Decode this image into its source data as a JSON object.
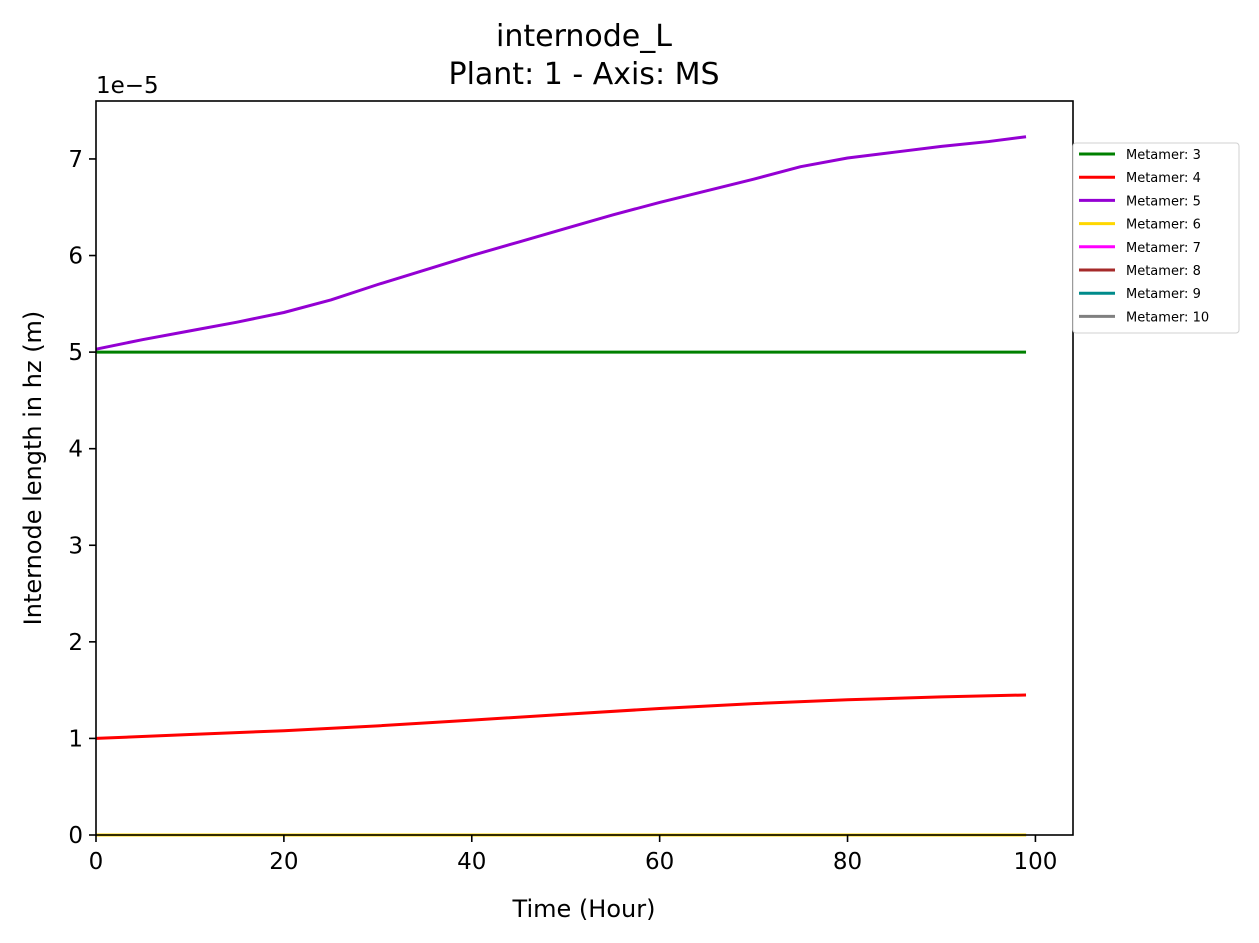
{
  "chart_data": {
    "type": "line",
    "title": "internode_L",
    "subtitle": "Plant: 1 - Axis: MS",
    "xlabel": "Time (Hour)",
    "ylabel": "Internode length in hz (m)",
    "y_offset_label": "1e−5",
    "xlim": [
      0,
      104
    ],
    "ylim": [
      0,
      7.6
    ],
    "x_ticks": [
      0,
      20,
      40,
      60,
      80,
      100
    ],
    "y_ticks": [
      0,
      1,
      2,
      3,
      4,
      5,
      6,
      7
    ],
    "grid": false,
    "legend_position": "outside right, top",
    "series": [
      {
        "name": "Metamer: 3",
        "color": "#008000",
        "x": [
          0,
          99
        ],
        "y": [
          5.0,
          5.0
        ]
      },
      {
        "name": "Metamer: 4",
        "color": "#ff0000",
        "x": [
          0,
          10,
          20,
          30,
          40,
          50,
          60,
          70,
          80,
          90,
          99
        ],
        "y": [
          1.0,
          1.04,
          1.08,
          1.13,
          1.19,
          1.25,
          1.31,
          1.36,
          1.4,
          1.43,
          1.45
        ]
      },
      {
        "name": "Metamer: 5",
        "color": "#9400d3",
        "x": [
          0,
          5,
          10,
          15,
          20,
          25,
          30,
          35,
          40,
          45,
          50,
          55,
          60,
          65,
          70,
          75,
          80,
          85,
          90,
          95,
          99
        ],
        "y": [
          5.03,
          5.13,
          5.22,
          5.31,
          5.41,
          5.54,
          5.7,
          5.85,
          6.0,
          6.14,
          6.28,
          6.42,
          6.55,
          6.67,
          6.79,
          6.92,
          7.01,
          7.07,
          7.13,
          7.18,
          7.23
        ]
      },
      {
        "name": "Metamer: 6",
        "color": "#ffd700",
        "x": [
          0,
          99
        ],
        "y": [
          0,
          0
        ]
      },
      {
        "name": "Metamer: 7",
        "color": "#ff00ff",
        "x": [
          0,
          99
        ],
        "y": [
          0,
          0
        ]
      },
      {
        "name": "Metamer: 8",
        "color": "#a52a2a",
        "x": [
          0,
          99
        ],
        "y": [
          0,
          0
        ]
      },
      {
        "name": "Metamer: 9",
        "color": "#008b8b",
        "x": [
          0,
          99
        ],
        "y": [
          0,
          0
        ]
      },
      {
        "name": "Metamer: 10",
        "color": "#808080",
        "x": [
          0,
          99
        ],
        "y": [
          0,
          0
        ]
      }
    ]
  }
}
